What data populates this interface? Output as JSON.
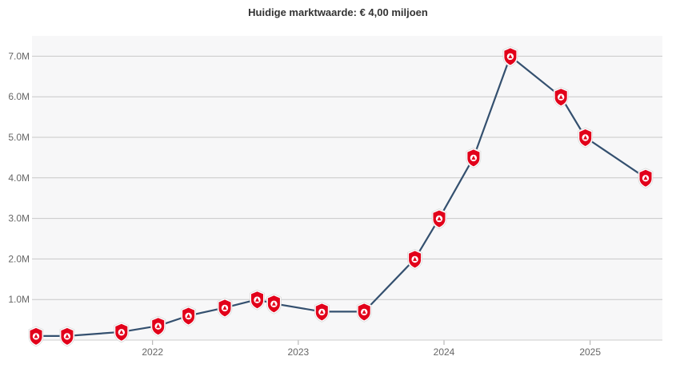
{
  "chart_data": {
    "type": "line",
    "title": "Huidige marktwaarde: € 4,00 miljoen",
    "xlabel": "",
    "ylabel": "",
    "x_tick_labels": [
      "2022",
      "2023",
      "2024",
      "2025"
    ],
    "y_tick_labels": [
      "1.0M",
      "2.0M",
      "3.0M",
      "4.0M",
      "5.0M",
      "6.0M",
      "7.0M"
    ],
    "ylim": [
      0,
      7.5
    ],
    "grid": true,
    "series": [
      {
        "color": "#34506f",
        "marker": "club-crest-icon",
        "points": [
          {
            "x": "2021-03-15",
            "y": 0.1
          },
          {
            "x": "2021-06-01",
            "y": 0.1
          },
          {
            "x": "2021-10-15",
            "y": 0.2
          },
          {
            "x": "2022-01-15",
            "y": 0.35
          },
          {
            "x": "2022-04-01",
            "y": 0.6
          },
          {
            "x": "2022-07-01",
            "y": 0.8
          },
          {
            "x": "2022-09-20",
            "y": 1.0
          },
          {
            "x": "2022-11-01",
            "y": 0.9
          },
          {
            "x": "2023-03-01",
            "y": 0.7
          },
          {
            "x": "2023-06-15",
            "y": 0.7
          },
          {
            "x": "2023-10-20",
            "y": 2.0
          },
          {
            "x": "2023-12-20",
            "y": 3.0
          },
          {
            "x": "2024-03-15",
            "y": 4.5
          },
          {
            "x": "2024-06-15",
            "y": 7.0
          },
          {
            "x": "2024-10-20",
            "y": 6.0
          },
          {
            "x": "2024-12-20",
            "y": 5.0
          },
          {
            "x": "2025-05-20",
            "y": 4.0
          }
        ]
      }
    ]
  },
  "colors": {
    "plot_background": "#f7f7f8",
    "gridline": "#c8c8c8",
    "line": "#34506f",
    "crest_red": "#e2001a"
  }
}
